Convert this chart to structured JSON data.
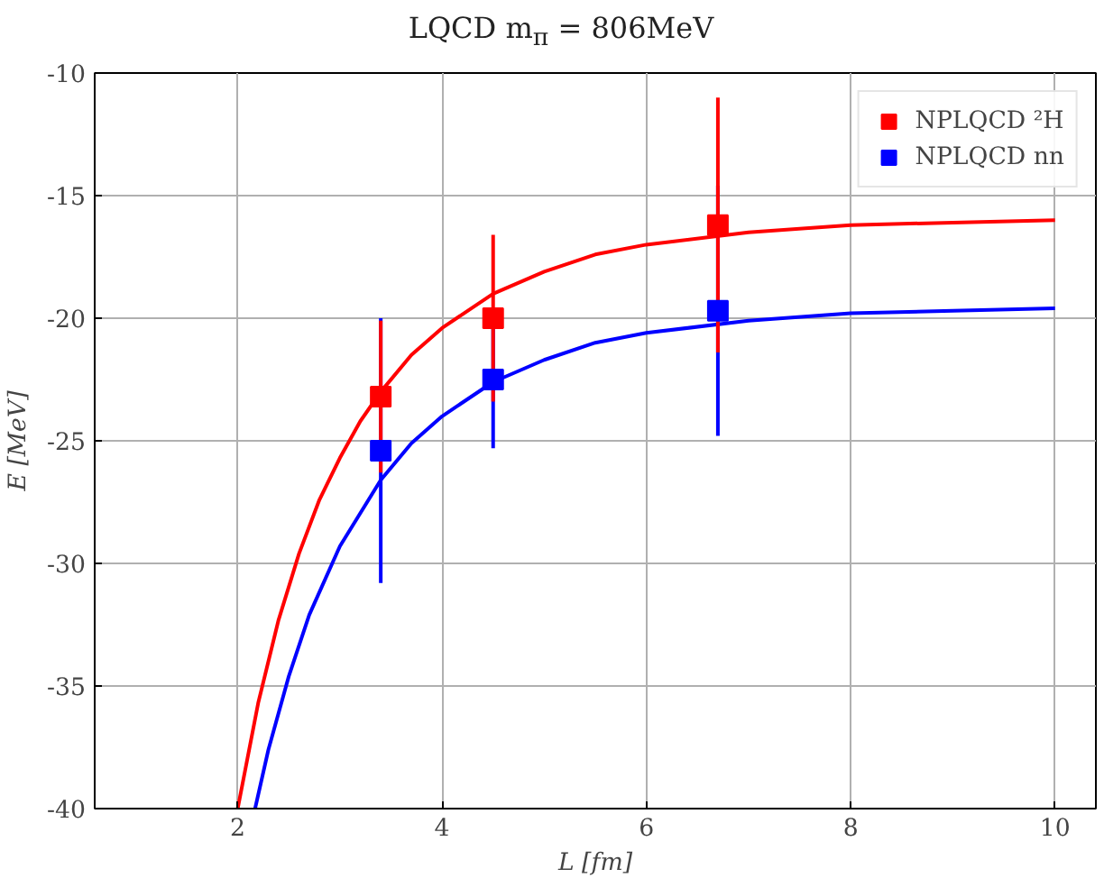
{
  "chart_data": {
    "type": "scatter",
    "title": "LQCD m$_{π}$ = 806MeV",
    "xlabel": "L [fm]",
    "ylabel": "E [MeV]",
    "xlim": [
      0.6,
      10.4
    ],
    "ylim": [
      -40,
      -10
    ],
    "xticks": [
      2,
      4,
      6,
      8,
      10
    ],
    "yticks": [
      -40,
      -35,
      -30,
      -25,
      -20,
      -15,
      -10
    ],
    "grid": true,
    "legend": "top right",
    "marker": "square",
    "series": [
      {
        "type": "line",
        "marker": "none",
        "color": "#ff0000",
        "x": [
          2.0,
          2.2,
          2.4,
          2.6,
          2.8,
          3.0,
          3.2,
          3.4,
          3.7,
          4.0,
          4.5,
          5.0,
          5.5,
          6.0,
          7.0,
          8.0,
          9.0,
          10.0
        ],
        "values": [
          -40.0,
          -35.7,
          -32.3,
          -29.6,
          -27.4,
          -25.7,
          -24.2,
          -23.0,
          -21.5,
          -20.4,
          -19.0,
          -18.1,
          -17.4,
          -17.0,
          -16.5,
          -16.2,
          -16.1,
          -16.0
        ]
      },
      {
        "type": "line",
        "marker": "none",
        "color": "#0000ff",
        "x": [
          2.17,
          2.3,
          2.5,
          2.7,
          3.0,
          3.4,
          3.7,
          4.0,
          4.5,
          5.0,
          5.5,
          6.0,
          7.0,
          8.0,
          9.0,
          10.0
        ],
        "values": [
          -40.0,
          -37.6,
          -34.6,
          -32.1,
          -29.3,
          -26.6,
          -25.1,
          -24.0,
          -22.6,
          -21.7,
          -21.0,
          -20.6,
          -20.1,
          -19.8,
          -19.7,
          -19.6
        ]
      },
      {
        "name": "NPLQCD ²H",
        "color": "#ff0000",
        "x": [
          3.4,
          4.5,
          6.7
        ],
        "values": [
          -23.2,
          -20.0,
          -16.2
        ],
        "errors": [
          3.1,
          3.4,
          5.2
        ]
      },
      {
        "name": "NPLQCD nn",
        "color": "#0000ff",
        "x": [
          3.4,
          4.5,
          6.7
        ],
        "values": [
          -25.4,
          -22.5,
          -19.7
        ],
        "errors": [
          5.4,
          2.8,
          5.1
        ]
      }
    ]
  }
}
